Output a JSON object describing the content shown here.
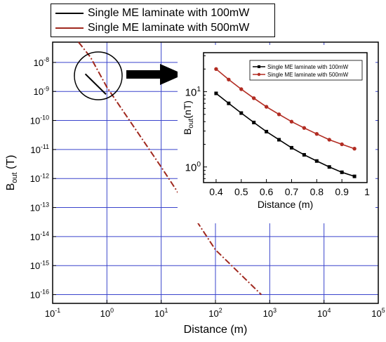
{
  "chart_data": [
    {
      "type": "line",
      "xlabel": "Distance (m)",
      "ylabel_main": "B",
      "ylabel_sub": "out",
      "ylabel_unit": " (T)",
      "xscale": "log",
      "yscale": "log",
      "xlim": [
        0.1,
        100000
      ],
      "ylim": [
        5e-17,
        5e-08
      ],
      "x_ticks": [
        {
          "base": "10",
          "exp": "-1",
          "value": 0.1
        },
        {
          "base": "10",
          "exp": "0",
          "value": 1
        },
        {
          "base": "10",
          "exp": "1",
          "value": 10
        },
        {
          "base": "10",
          "exp": "2",
          "value": 100
        },
        {
          "base": "10",
          "exp": "3",
          "value": 1000
        },
        {
          "base": "10",
          "exp": "4",
          "value": 10000
        },
        {
          "base": "10",
          "exp": "5",
          "value": 100000
        }
      ],
      "y_ticks": [
        {
          "base": "10",
          "exp": "-8",
          "value": 1e-08
        },
        {
          "base": "10",
          "exp": "-9",
          "value": 1e-09
        },
        {
          "base": "10",
          "exp": "-10",
          "value": 1e-10
        },
        {
          "base": "10",
          "exp": "-11",
          "value": 1e-11
        },
        {
          "base": "10",
          "exp": "-12",
          "value": 1e-12
        },
        {
          "base": "10",
          "exp": "-13",
          "value": 1e-13
        },
        {
          "base": "10",
          "exp": "-14",
          "value": 1e-14
        },
        {
          "base": "10",
          "exp": "-15",
          "value": 1e-15
        },
        {
          "base": "10",
          "exp": "-16",
          "value": 1e-16
        }
      ],
      "grid": true,
      "legend_position": "top-left, outside above plot",
      "series": [
        {
          "name": "Single ME laminate with 100mW",
          "color": "#000000",
          "style": "solid",
          "x": [
            0.4,
            0.96
          ],
          "y": [
            4e-09,
            8e-10
          ]
        },
        {
          "name": "Single ME laminate with 500mW",
          "color": "#a0281e",
          "style": "dash-dot",
          "x": [
            0.3,
            0.5,
            1,
            10,
            100,
            700
          ],
          "y": [
            5e-08,
            1.5e-08,
            1.4e-09,
            2.5e-12,
            3.5e-15,
            1e-16
          ]
        }
      ],
      "annotations": [
        "circle around short lines near x=0.5-1",
        "black arrow pointing to inset"
      ]
    },
    {
      "type": "line",
      "xlabel": "Distance (m)",
      "ylabel_main": "B",
      "ylabel_sub": "out",
      "ylabel_unit": "(nT)",
      "xscale": "linear",
      "yscale": "log",
      "xlim": [
        0.35,
        1.0
      ],
      "ylim": [
        0.62,
        33
      ],
      "x_ticks": [
        "0.4",
        "0.5",
        "0.6",
        "0.7",
        "0.8",
        "0.9",
        "1"
      ],
      "y_ticks": [
        {
          "base": "10",
          "exp": "1",
          "value": 10
        },
        {
          "base": "10",
          "exp": "0",
          "value": 1
        }
      ],
      "legend_position": "top-right",
      "series": [
        {
          "name": "Single ME laminate with 100mW",
          "color": "#000000",
          "marker": "square",
          "x": [
            0.4,
            0.45,
            0.5,
            0.55,
            0.6,
            0.65,
            0.7,
            0.75,
            0.8,
            0.85,
            0.9,
            0.95
          ],
          "y": [
            9.5,
            7.0,
            5.2,
            3.9,
            2.95,
            2.3,
            1.8,
            1.45,
            1.2,
            1.0,
            0.85,
            0.75
          ]
        },
        {
          "name": "Single ME laminate with 500mW",
          "color": "#b22c22",
          "marker": "circle",
          "x": [
            0.4,
            0.45,
            0.5,
            0.55,
            0.6,
            0.65,
            0.7,
            0.75,
            0.8,
            0.85,
            0.9,
            0.95
          ],
          "y": [
            20,
            14.5,
            10.8,
            8.2,
            6.3,
            5.0,
            4.0,
            3.3,
            2.75,
            2.3,
            2.0,
            1.75
          ]
        }
      ]
    }
  ]
}
